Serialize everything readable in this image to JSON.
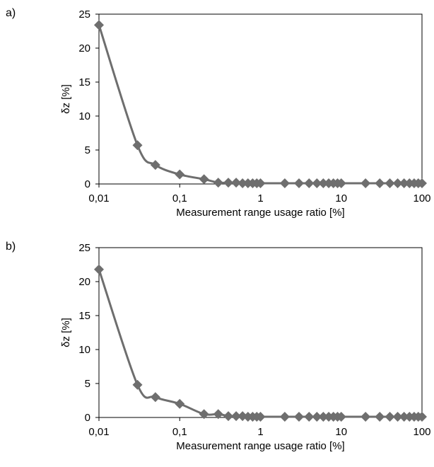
{
  "panels": [
    {
      "label": "a)"
    },
    {
      "label": "b)"
    }
  ],
  "chart_data": [
    {
      "type": "line",
      "xlabel": "Measurement range usage ratio [%]",
      "ylabel": "δz [%]",
      "xscale": "log",
      "xlim": [
        0.01,
        100
      ],
      "ylim": [
        0,
        25
      ],
      "xticks": [
        "0,01",
        "0,1",
        "1",
        "10",
        "100"
      ],
      "yticks": [
        "0",
        "5",
        "10",
        "15",
        "20",
        "25"
      ],
      "grid": false,
      "color": "#6e6e6e",
      "marker": "diamond",
      "x": [
        0.01,
        0.03,
        0.05,
        0.1,
        0.2,
        0.3,
        0.4,
        0.5,
        0.6,
        0.7,
        0.8,
        0.9,
        1,
        2,
        3,
        4,
        5,
        6,
        7,
        8,
        9,
        10,
        20,
        30,
        40,
        50,
        60,
        70,
        80,
        90,
        100
      ],
      "y": [
        23.4,
        5.7,
        2.8,
        1.4,
        0.7,
        0.2,
        0.2,
        0.2,
        0.1,
        0.1,
        0.1,
        0.1,
        0.1,
        0.1,
        0.1,
        0.1,
        0.1,
        0.1,
        0.1,
        0.1,
        0.1,
        0.1,
        0.1,
        0.1,
        0.1,
        0.1,
        0.1,
        0.1,
        0.1,
        0.1,
        0.1
      ]
    },
    {
      "type": "line",
      "xlabel": "Measurement range usage ratio [%]",
      "ylabel": "δz [%]",
      "xscale": "log",
      "xlim": [
        0.01,
        100
      ],
      "ylim": [
        0,
        25
      ],
      "xticks": [
        "0,01",
        "0,1",
        "1",
        "10",
        "100"
      ],
      "yticks": [
        "0",
        "5",
        "10",
        "15",
        "20",
        "25"
      ],
      "grid": false,
      "color": "#6e6e6e",
      "marker": "diamond",
      "x": [
        0.01,
        0.03,
        0.05,
        0.1,
        0.2,
        0.3,
        0.4,
        0.5,
        0.6,
        0.7,
        0.8,
        0.9,
        1,
        2,
        3,
        4,
        5,
        6,
        7,
        8,
        9,
        10,
        20,
        30,
        40,
        50,
        60,
        70,
        80,
        90,
        100
      ],
      "y": [
        21.8,
        4.8,
        3.0,
        2.0,
        0.5,
        0.5,
        0.2,
        0.2,
        0.2,
        0.1,
        0.1,
        0.1,
        0.1,
        0.1,
        0.1,
        0.1,
        0.1,
        0.1,
        0.1,
        0.1,
        0.1,
        0.1,
        0.1,
        0.1,
        0.1,
        0.1,
        0.1,
        0.1,
        0.1,
        0.1,
        0.1
      ]
    }
  ]
}
